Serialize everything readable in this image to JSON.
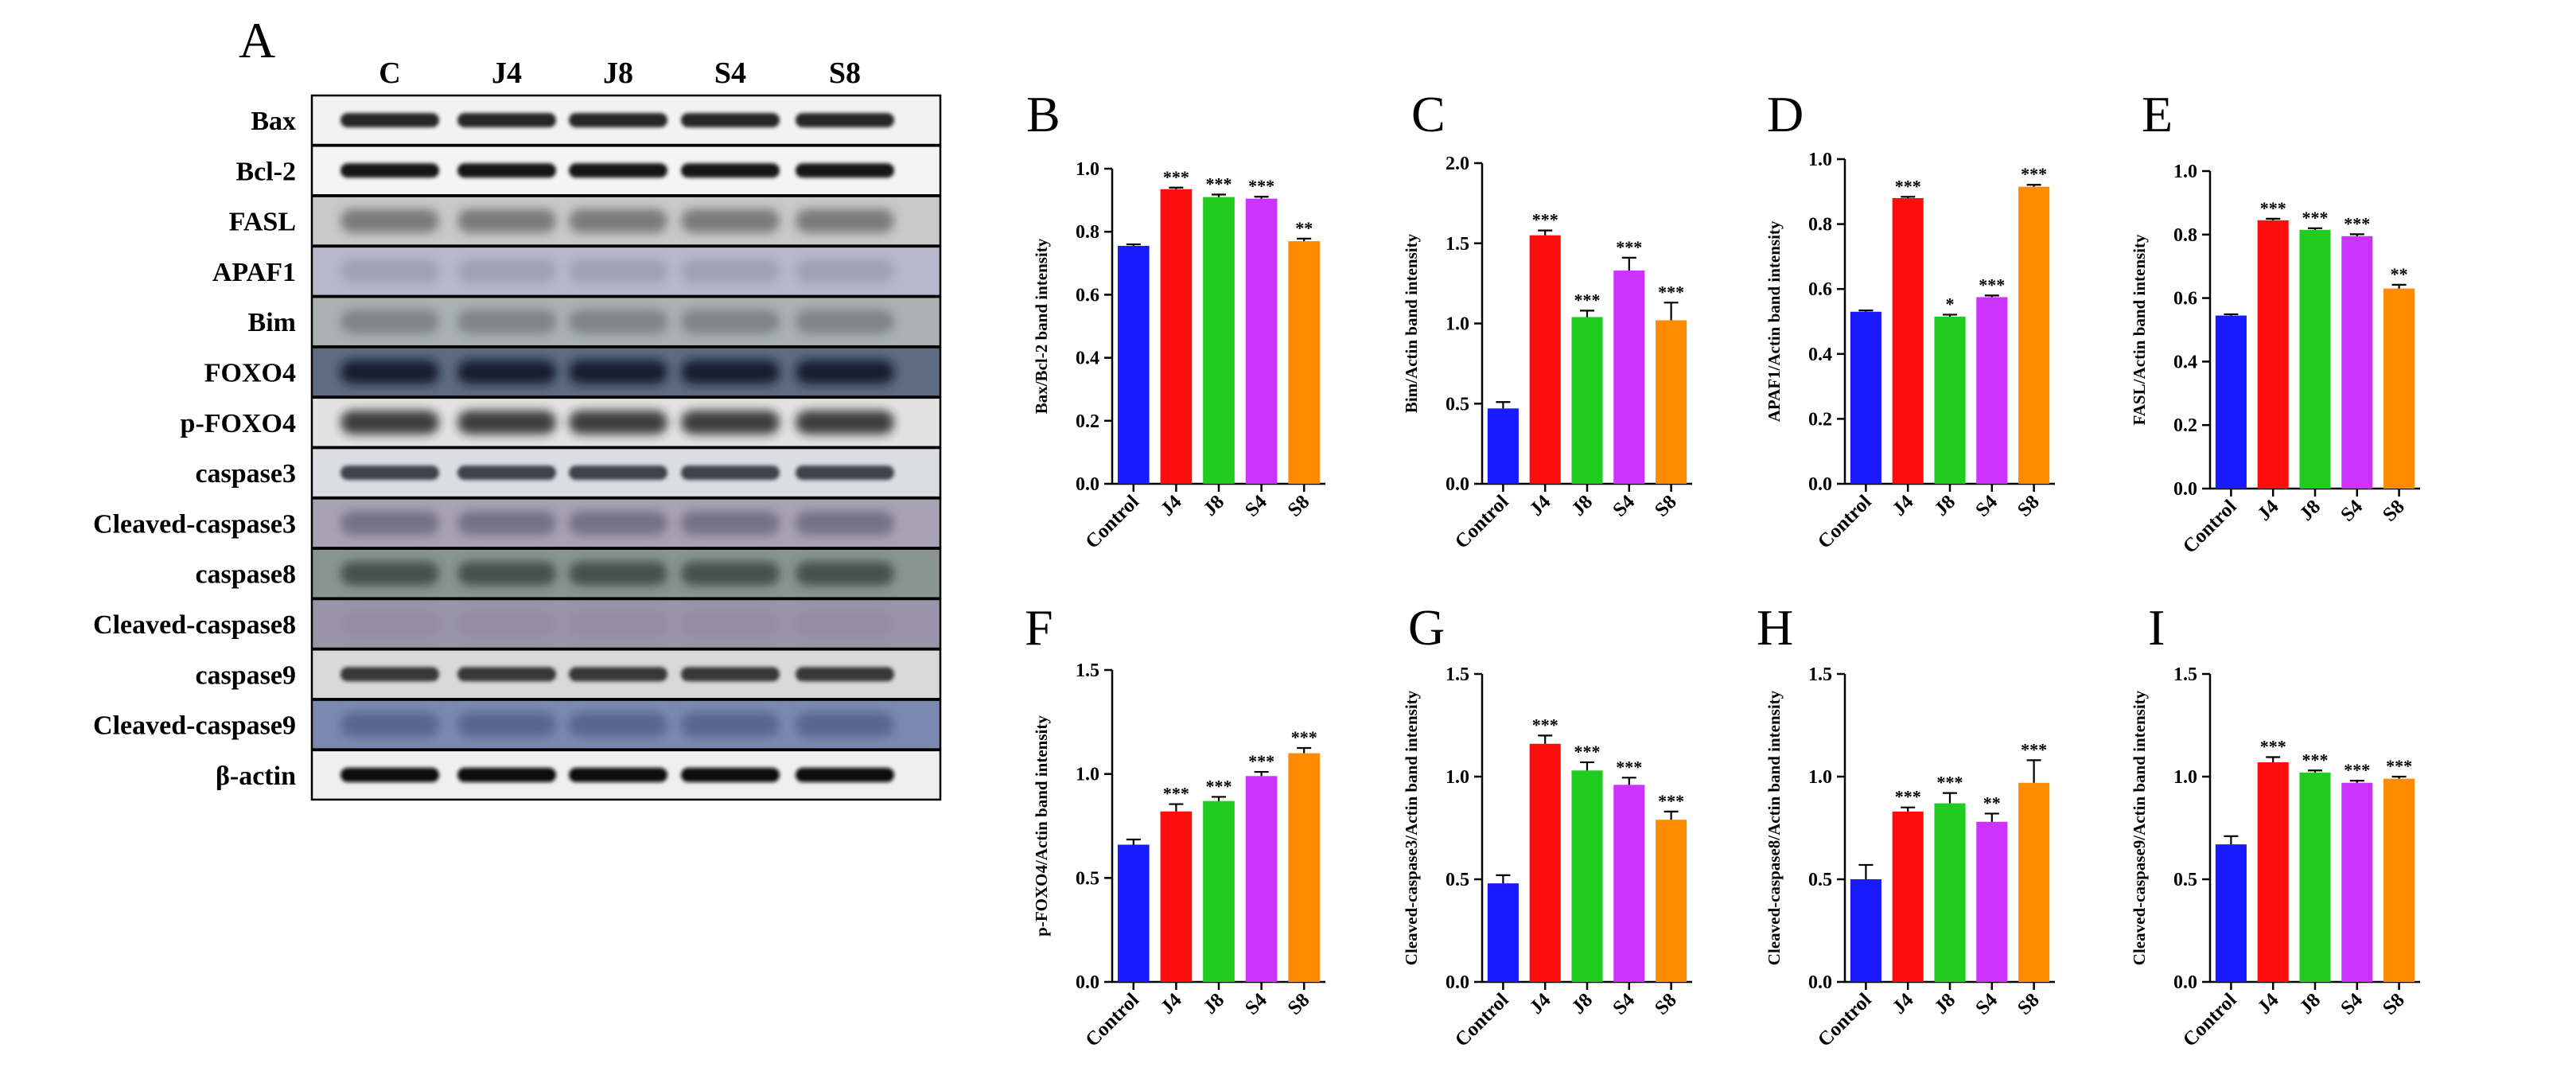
{
  "blot": {
    "panel_letter": "A",
    "lanes": [
      "C",
      "J4",
      "J8",
      "S4",
      "S8"
    ],
    "proteins": [
      {
        "name": "Bax",
        "bg": "#f2f2f2",
        "band": "#1b1b1b",
        "strength": 0.95,
        "soft": false
      },
      {
        "name": "Bcl-2",
        "bg": "#f4f4f4",
        "band": "#151515",
        "strength": 1.0,
        "soft": false
      },
      {
        "name": "FASL",
        "bg": "#c9c9c9",
        "band": "#3a3a3a",
        "strength": 0.55,
        "soft": true
      },
      {
        "name": "APAF1",
        "bg": "#b8b8cc",
        "band": "#7a7a99",
        "strength": 0.4,
        "soft": true
      },
      {
        "name": "Bim",
        "bg": "#a9b1b3",
        "band": "#555a5e",
        "strength": 0.5,
        "soft": true
      },
      {
        "name": "FOXO4",
        "bg": "#5d6a80",
        "band": "#10162b",
        "strength": 0.9,
        "soft": true
      },
      {
        "name": "p-FOXO4",
        "bg": "#e2e2e2",
        "band": "#222222",
        "strength": 0.85,
        "soft": true
      },
      {
        "name": "caspase3",
        "bg": "#dcdde3",
        "band": "#262830",
        "strength": 0.85,
        "soft": false
      },
      {
        "name": "Cleaved-caspase3",
        "bg": "#a7a2b4",
        "band": "#4e4860",
        "strength": 0.55,
        "soft": true
      },
      {
        "name": "caspase8",
        "bg": "#8a9591",
        "band": "#2a3330",
        "strength": 0.7,
        "soft": true
      },
      {
        "name": "Cleaved-caspase8",
        "bg": "#9994a8",
        "band": "#807a92",
        "strength": 0.25,
        "soft": true
      },
      {
        "name": "caspase9",
        "bg": "#d8d8d8",
        "band": "#1c1c1c",
        "strength": 0.85,
        "soft": false
      },
      {
        "name": "Cleaved-caspase9",
        "bg": "#7b89b1",
        "band": "#3c4870",
        "strength": 0.55,
        "soft": true
      },
      {
        "name": "β-actin",
        "bg": "#efefef",
        "band": "#111111",
        "strength": 1.0,
        "soft": false
      }
    ]
  },
  "chart_data": [
    {
      "panel": "B",
      "type": "bar",
      "categories": [
        "Control",
        "J4",
        "J8",
        "S4",
        "S8"
      ],
      "values": [
        0.755,
        0.935,
        0.91,
        0.905,
        0.77
      ],
      "errors": [
        0.005,
        0.005,
        0.008,
        0.006,
        0.008
      ],
      "significance": [
        "",
        "***",
        "***",
        "***",
        "**"
      ],
      "ylabel": "Bax/Bcl-2 band intensity",
      "ylim": [
        0,
        1.0
      ],
      "yticks": [
        "0.0",
        "0.2",
        "0.4",
        "0.6",
        "0.8",
        "1.0"
      ],
      "colors": [
        "#1a1aff",
        "#ff0d0d",
        "#1fcc1f",
        "#cc33ff",
        "#ff8c00"
      ]
    },
    {
      "panel": "C",
      "type": "bar",
      "categories": [
        "Control",
        "J4",
        "J8",
        "S4",
        "S8"
      ],
      "values": [
        0.47,
        1.55,
        1.04,
        1.33,
        1.02
      ],
      "errors": [
        0.04,
        0.03,
        0.04,
        0.08,
        0.11
      ],
      "significance": [
        "",
        "***",
        "***",
        "***",
        "***"
      ],
      "ylabel": "Bim/Actin band intensity",
      "ylim": [
        0,
        2.0
      ],
      "yticks": [
        "0.0",
        "0.5",
        "1.0",
        "1.5",
        "2.0"
      ],
      "colors": [
        "#1a1aff",
        "#ff0d0d",
        "#1fcc1f",
        "#cc33ff",
        "#ff8c00"
      ]
    },
    {
      "panel": "D",
      "type": "bar",
      "categories": [
        "Control",
        "J4",
        "J8",
        "S4",
        "S8"
      ],
      "values": [
        0.53,
        0.88,
        0.515,
        0.575,
        0.915
      ],
      "errors": [
        0.004,
        0.004,
        0.006,
        0.005,
        0.006
      ],
      "significance": [
        "",
        "***",
        "*",
        "***",
        "***"
      ],
      "ylabel": "APAF1/Actin band intensity",
      "ylim": [
        0,
        1.0
      ],
      "yticks": [
        "0.0",
        "0.2",
        "0.4",
        "0.6",
        "0.8",
        "1.0"
      ],
      "colors": [
        "#1a1aff",
        "#ff0d0d",
        "#1fcc1f",
        "#cc33ff",
        "#ff8c00"
      ]
    },
    {
      "panel": "E",
      "type": "bar",
      "categories": [
        "Control",
        "J4",
        "J8",
        "S4",
        "S8"
      ],
      "values": [
        0.545,
        0.845,
        0.815,
        0.795,
        0.63
      ],
      "errors": [
        0.004,
        0.005,
        0.005,
        0.006,
        0.012
      ],
      "significance": [
        "",
        "***",
        "***",
        "***",
        "**"
      ],
      "ylabel": "FASL/Actin band intensity",
      "ylim": [
        0,
        1.0
      ],
      "yticks": [
        "0.0",
        "0.2",
        "0.4",
        "0.6",
        "0.8",
        "1.0"
      ],
      "colors": [
        "#1a1aff",
        "#ff0d0d",
        "#1fcc1f",
        "#cc33ff",
        "#ff8c00"
      ]
    },
    {
      "panel": "F",
      "type": "bar",
      "categories": [
        "Control",
        "J4",
        "J8",
        "S4",
        "S8"
      ],
      "values": [
        0.66,
        0.82,
        0.87,
        0.99,
        1.1
      ],
      "errors": [
        0.025,
        0.035,
        0.02,
        0.02,
        0.025
      ],
      "significance": [
        "",
        "***",
        "***",
        "***",
        "***"
      ],
      "ylabel": "p-FOXO4/Actin band intensity",
      "ylim": [
        0,
        1.5
      ],
      "yticks": [
        "0.0",
        "0.5",
        "1.0",
        "1.5"
      ],
      "colors": [
        "#1a1aff",
        "#ff0d0d",
        "#1fcc1f",
        "#cc33ff",
        "#ff8c00"
      ]
    },
    {
      "panel": "G",
      "type": "bar",
      "categories": [
        "Control",
        "J4",
        "J8",
        "S4",
        "S8"
      ],
      "values": [
        0.48,
        1.16,
        1.03,
        0.96,
        0.79
      ],
      "errors": [
        0.04,
        0.04,
        0.04,
        0.035,
        0.04
      ],
      "significance": [
        "",
        "***",
        "***",
        "***",
        "***"
      ],
      "ylabel": "Cleaved-caspase3/Actin band intensity",
      "ylim": [
        0,
        1.5
      ],
      "yticks": [
        "0.0",
        "0.5",
        "1.0",
        "1.5"
      ],
      "colors": [
        "#1a1aff",
        "#ff0d0d",
        "#1fcc1f",
        "#cc33ff",
        "#ff8c00"
      ]
    },
    {
      "panel": "H",
      "type": "bar",
      "categories": [
        "Control",
        "J4",
        "J8",
        "S4",
        "S8"
      ],
      "values": [
        0.5,
        0.83,
        0.87,
        0.78,
        0.97
      ],
      "errors": [
        0.07,
        0.02,
        0.05,
        0.04,
        0.11
      ],
      "significance": [
        "",
        "***",
        "***",
        "**",
        "***"
      ],
      "ylabel": "Cleaved-caspase8/Actin band intensity",
      "ylim": [
        0,
        1.5
      ],
      "yticks": [
        "0.0",
        "0.5",
        "1.0",
        "1.5"
      ],
      "colors": [
        "#1a1aff",
        "#ff0d0d",
        "#1fcc1f",
        "#cc33ff",
        "#ff8c00"
      ]
    },
    {
      "panel": "I",
      "type": "bar",
      "categories": [
        "Control",
        "J4",
        "J8",
        "S4",
        "S8"
      ],
      "values": [
        0.67,
        1.07,
        1.02,
        0.97,
        0.99
      ],
      "errors": [
        0.04,
        0.025,
        0.01,
        0.01,
        0.01
      ],
      "significance": [
        "",
        "***",
        "***",
        "***",
        "***"
      ],
      "ylabel": "Cleaved-caspase9/Actin band intensity",
      "ylim": [
        0,
        1.5
      ],
      "yticks": [
        "0.0",
        "0.5",
        "1.0",
        "1.5"
      ],
      "colors": [
        "#1a1aff",
        "#ff0d0d",
        "#1fcc1f",
        "#cc33ff",
        "#ff8c00"
      ]
    }
  ]
}
